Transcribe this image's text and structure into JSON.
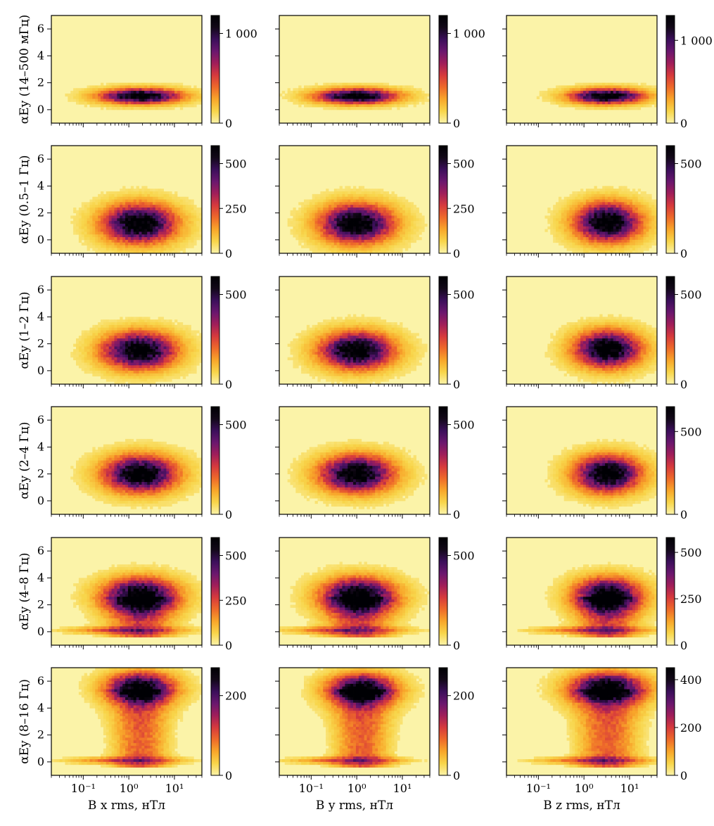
{
  "chart_data": {
    "type": "heatmap",
    "x_scale": "log",
    "x_range": [
      0.02,
      40
    ],
    "y_range": [
      -1,
      7
    ],
    "x_ticks": [
      "10⁻¹",
      "10⁰",
      "10¹"
    ],
    "y_ticks": [
      "0",
      "2",
      "4",
      "6"
    ],
    "x_labels": [
      "B x rms, нТл",
      "B y rms, нТл",
      "B z rms, нТл"
    ],
    "colormap": [
      "#fbf3a8",
      "#f8d54a",
      "#f8a62a",
      "#ee6a2a",
      "#d63a3d",
      "#a01e5a",
      "#6a176e",
      "#3b0f5a",
      "#120818",
      "#000004"
    ],
    "rows": [
      {
        "ylabel": "αEy (14–500 мГц)",
        "panels": [
          {
            "center": [
              1.8,
              1.0
            ],
            "sigma_x": 0.55,
            "sigma_y": 0.35,
            "max": 1200,
            "cb_ticks": [
              0,
              1000
            ],
            "cb_labels": [
              "0",
              "1 000"
            ]
          },
          {
            "center": [
              1.0,
              1.0
            ],
            "sigma_x": 0.55,
            "sigma_y": 0.35,
            "max": 1200,
            "cb_ticks": [
              0,
              1000
            ],
            "cb_labels": [
              "0",
              "1 000"
            ]
          },
          {
            "center": [
              3.2,
              1.0
            ],
            "sigma_x": 0.5,
            "sigma_y": 0.35,
            "max": 1300,
            "cb_ticks": [
              0,
              1000
            ],
            "cb_labels": [
              "0",
              "1 000"
            ]
          }
        ]
      },
      {
        "ylabel": "αEy (0.5–1 Гц)",
        "panels": [
          {
            "center": [
              1.7,
              1.2
            ],
            "sigma_x": 0.5,
            "sigma_y": 0.9,
            "max": 600,
            "cb_ticks": [
              0,
              250,
              500
            ],
            "cb_labels": [
              "0",
              "250",
              "500"
            ]
          },
          {
            "center": [
              1.0,
              1.2
            ],
            "sigma_x": 0.5,
            "sigma_y": 0.9,
            "max": 600,
            "cb_ticks": [
              0,
              250,
              500
            ],
            "cb_labels": [
              "0",
              "250",
              "500"
            ]
          },
          {
            "center": [
              3.3,
              1.3
            ],
            "sigma_x": 0.45,
            "sigma_y": 0.9,
            "max": 600,
            "cb_ticks": [
              0,
              500
            ],
            "cb_labels": [
              "0",
              "500"
            ]
          }
        ]
      },
      {
        "ylabel": "αEy (1–2 Гц)",
        "panels": [
          {
            "center": [
              1.7,
              1.5
            ],
            "sigma_x": 0.5,
            "sigma_y": 0.85,
            "max": 600,
            "cb_ticks": [
              0,
              500
            ],
            "cb_labels": [
              "0",
              "500"
            ]
          },
          {
            "center": [
              1.0,
              1.5
            ],
            "sigma_x": 0.5,
            "sigma_y": 0.85,
            "max": 600,
            "cb_ticks": [
              0,
              500
            ],
            "cb_labels": [
              "0",
              "500"
            ]
          },
          {
            "center": [
              3.3,
              1.6
            ],
            "sigma_x": 0.45,
            "sigma_y": 0.85,
            "max": 600,
            "cb_ticks": [
              0,
              500
            ],
            "cb_labels": [
              "0",
              "500"
            ]
          }
        ]
      },
      {
        "ylabel": "αEy (2–4 Гц)",
        "panels": [
          {
            "center": [
              1.8,
              2.0
            ],
            "sigma_x": 0.5,
            "sigma_y": 0.85,
            "max": 600,
            "cb_ticks": [
              0,
              500
            ],
            "cb_labels": [
              "0",
              "500"
            ]
          },
          {
            "center": [
              1.0,
              2.0
            ],
            "sigma_x": 0.5,
            "sigma_y": 0.85,
            "max": 600,
            "cb_ticks": [
              0,
              500
            ],
            "cb_labels": [
              "0",
              "500"
            ]
          },
          {
            "center": [
              3.3,
              2.0
            ],
            "sigma_x": 0.45,
            "sigma_y": 0.85,
            "max": 650,
            "cb_ticks": [
              0,
              500
            ],
            "cb_labels": [
              "0",
              "500"
            ]
          }
        ]
      },
      {
        "ylabel": "αEy (4–8 Гц)",
        "panels": [
          {
            "center": [
              1.8,
              2.7
            ],
            "sigma_x": 0.5,
            "sigma_y": 0.8,
            "max": 600,
            "cb_ticks": [
              0,
              250,
              500
            ],
            "cb_labels": [
              "0",
              "250",
              "500"
            ]
          },
          {
            "center": [
              1.1,
              2.7
            ],
            "sigma_x": 0.5,
            "sigma_y": 0.8,
            "max": 600,
            "cb_ticks": [
              0,
              500
            ],
            "cb_labels": [
              "0",
              "500"
            ]
          },
          {
            "center": [
              3.3,
              2.7
            ],
            "sigma_x": 0.45,
            "sigma_y": 0.8,
            "max": 580,
            "cb_ticks": [
              0,
              250,
              500
            ],
            "cb_labels": [
              "0",
              "250",
              "500"
            ]
          }
        ]
      },
      {
        "ylabel": "αEy (8–16 Гц)",
        "panels": [
          {
            "center": [
              1.8,
              5.5
            ],
            "sigma_x": 0.45,
            "sigma_y": 0.7,
            "max": 270,
            "cb_ticks": [
              0,
              200
            ],
            "cb_labels": [
              "0",
              "200"
            ]
          },
          {
            "center": [
              1.3,
              5.4
            ],
            "sigma_x": 0.45,
            "sigma_y": 0.7,
            "max": 270,
            "cb_ticks": [
              0,
              200
            ],
            "cb_labels": [
              "0",
              "200"
            ]
          },
          {
            "center": [
              3.3,
              5.5
            ],
            "sigma_x": 0.5,
            "sigma_y": 0.7,
            "max": 450,
            "cb_ticks": [
              0,
              200,
              400
            ],
            "cb_labels": [
              "0",
              "200",
              "400"
            ]
          }
        ]
      }
    ]
  }
}
